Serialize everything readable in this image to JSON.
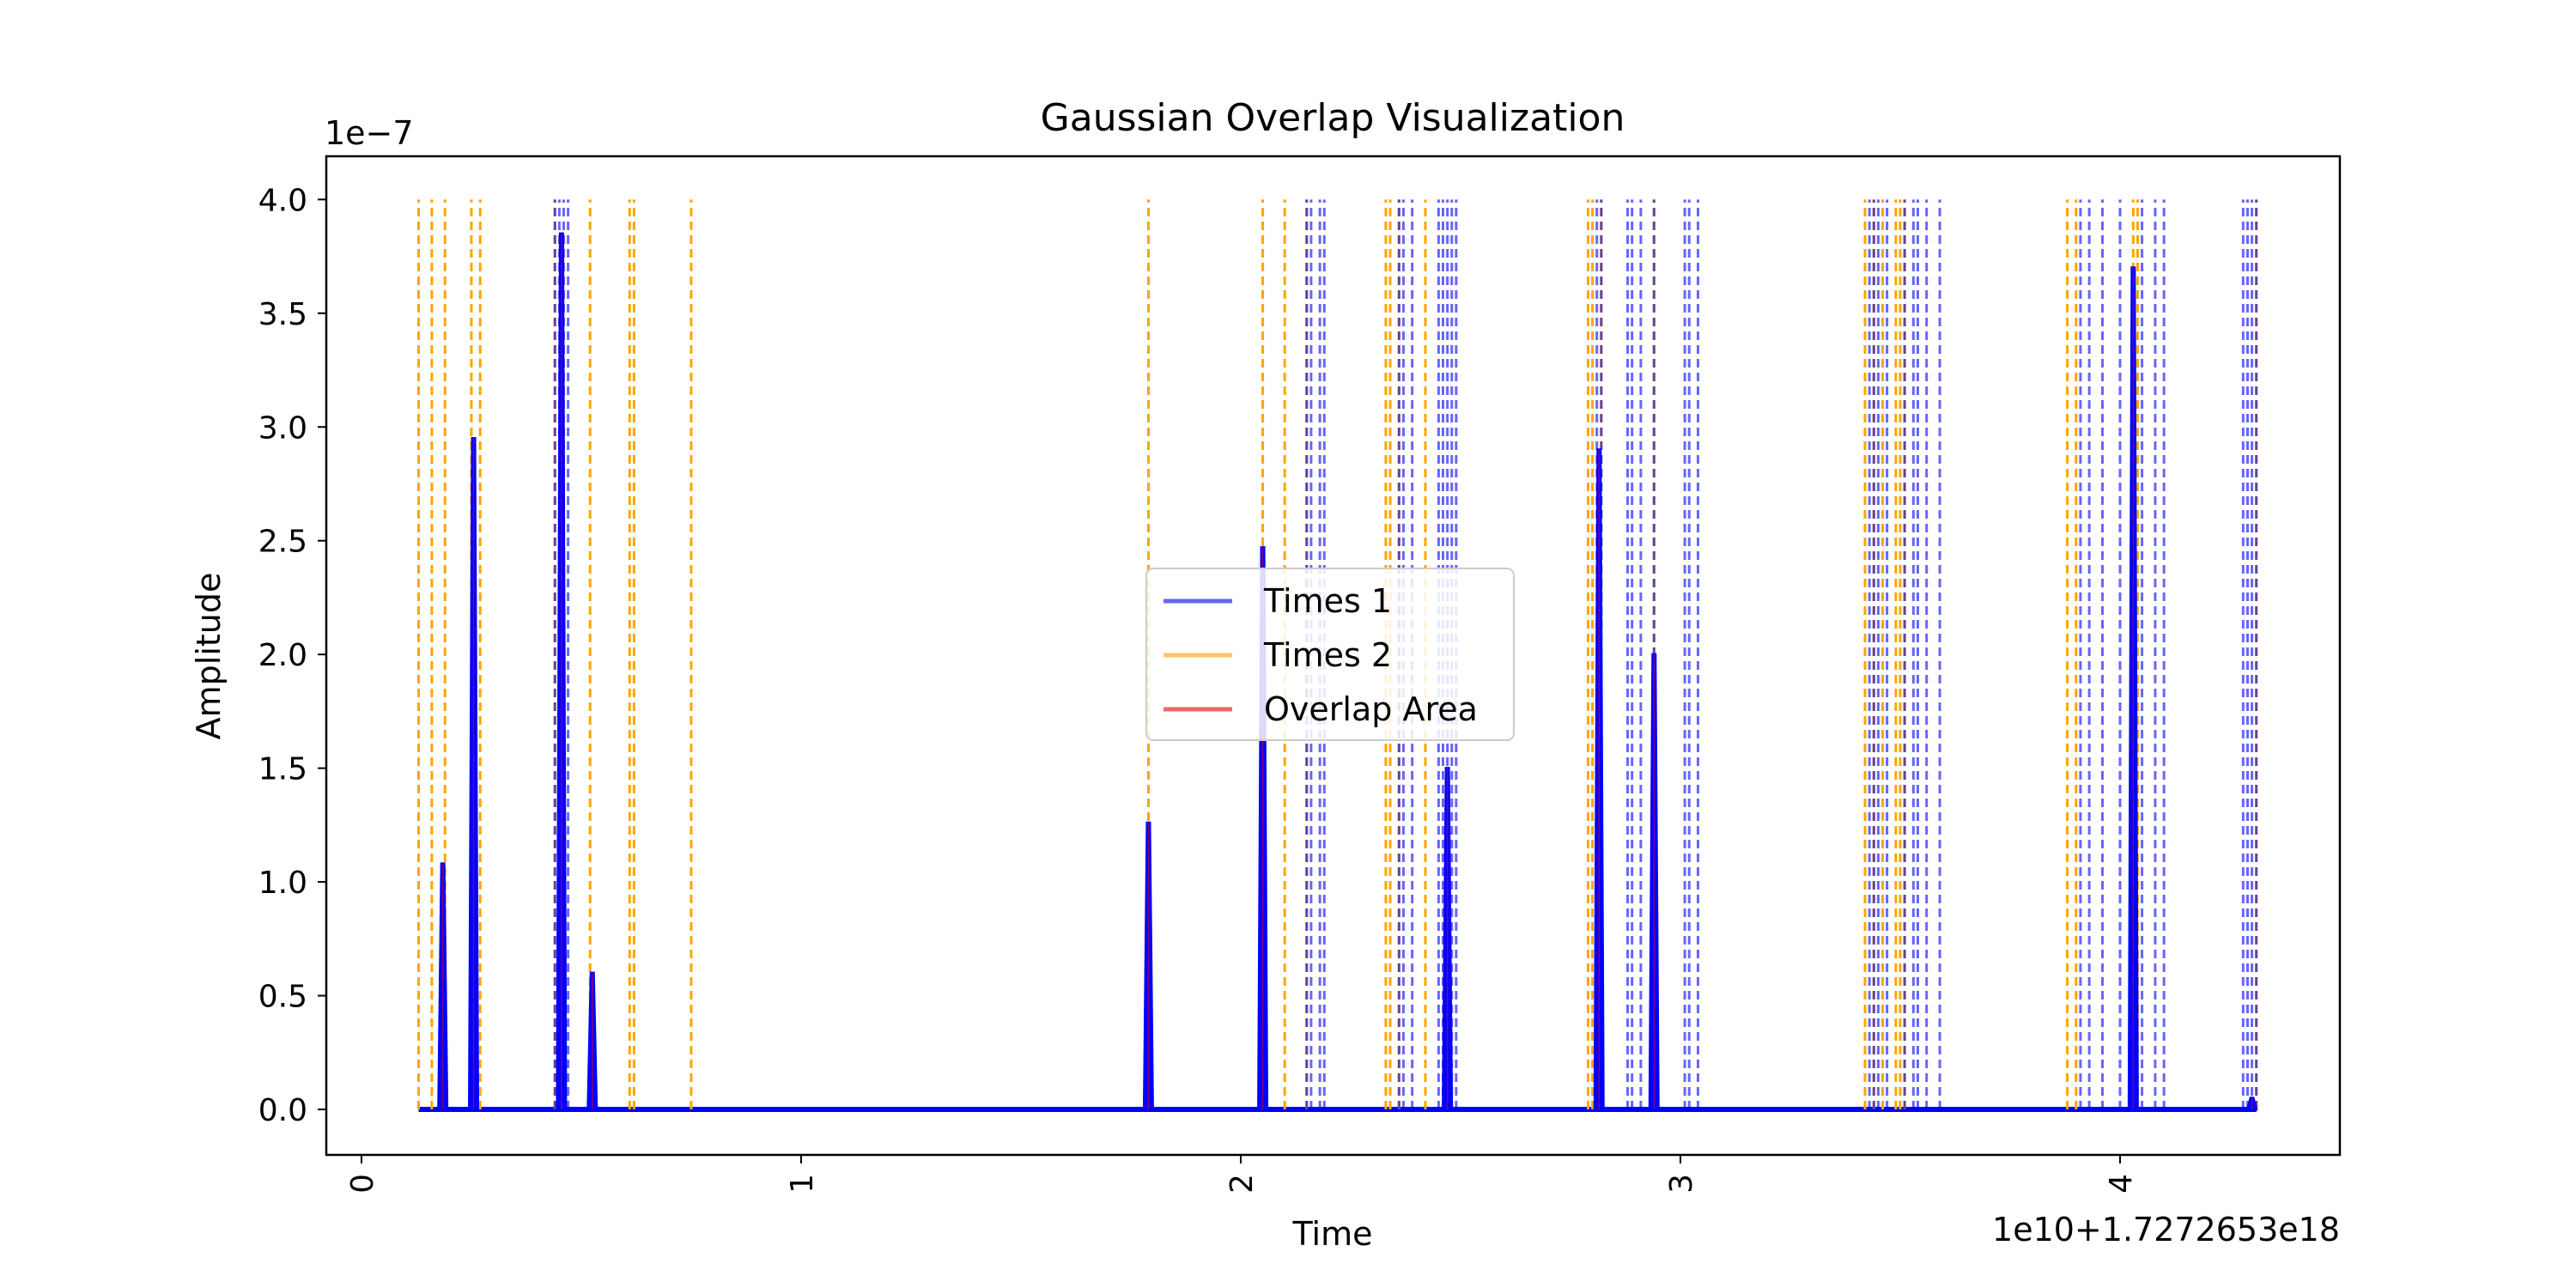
{
  "chart_data": {
    "type": "line",
    "title": "Gaussian Overlap Visualization",
    "xlabel": "Time",
    "ylabel": "Amplitude",
    "x_offset_text": "1e10+1.7272653e18",
    "y_scale_text": "1e−7",
    "xlim": [
      -0.08,
      4.5
    ],
    "ylim": [
      -0.2,
      4.19
    ],
    "x_ticks": [
      {
        "value": 0,
        "label": "0"
      },
      {
        "value": 1,
        "label": "1"
      },
      {
        "value": 2,
        "label": "2"
      },
      {
        "value": 3,
        "label": "3"
      },
      {
        "value": 4,
        "label": "4"
      }
    ],
    "y_ticks": [
      {
        "value": 0.0,
        "label": "0.0"
      },
      {
        "value": 0.5,
        "label": "0.5"
      },
      {
        "value": 1.0,
        "label": "1.0"
      },
      {
        "value": 1.5,
        "label": "1.5"
      },
      {
        "value": 2.0,
        "label": "2.0"
      },
      {
        "value": 2.5,
        "label": "2.5"
      },
      {
        "value": 3.0,
        "label": "3.0"
      },
      {
        "value": 3.5,
        "label": "3.5"
      },
      {
        "value": 4.0,
        "label": "4.0"
      }
    ],
    "legend": {
      "placement": "center",
      "entries": [
        {
          "label": "Times 1",
          "color": "#6666f0"
        },
        {
          "label": "Times 2",
          "color": "#ffc466"
        },
        {
          "label": "Overlap Area",
          "color": "#f06666"
        }
      ]
    },
    "colors": {
      "times1": "#0000ff",
      "times2": "#ffa500",
      "overlap": "#ff0000"
    },
    "x_range": [
      0.13,
      4.31
    ],
    "vline_top": 4.0,
    "times1_vlines": [
      0.44,
      0.45,
      0.46,
      0.47,
      2.15,
      2.16,
      2.18,
      2.19,
      2.36,
      2.37,
      2.39,
      2.45,
      2.46,
      2.47,
      2.48,
      2.49,
      2.81,
      2.82,
      2.88,
      2.89,
      2.91,
      2.94,
      3.01,
      3.02,
      3.04,
      3.43,
      3.44,
      3.45,
      3.47,
      3.51,
      3.53,
      3.54,
      3.56,
      3.59,
      3.91,
      3.93,
      3.96,
      4.0,
      4.05,
      4.08,
      4.1,
      4.28,
      4.29,
      4.3,
      4.31
    ],
    "times2_vlines": [
      0.13,
      0.16,
      0.19,
      0.25,
      0.27,
      0.44,
      0.52,
      0.61,
      0.62,
      0.75,
      1.79,
      2.05,
      2.1,
      2.15,
      2.33,
      2.34,
      2.36,
      2.42,
      2.79,
      2.8,
      2.82,
      2.94,
      3.42,
      3.44,
      3.46,
      3.49,
      3.5,
      3.51,
      3.88,
      3.9,
      4.03,
      4.04,
      4.31
    ],
    "peaks": [
      {
        "x": 0.185,
        "y": 1.08
      },
      {
        "x": 0.255,
        "y": 2.95
      },
      {
        "x": 0.455,
        "y": 3.85
      },
      {
        "x": 0.525,
        "y": 0.6
      },
      {
        "x": 1.79,
        "y": 1.26
      },
      {
        "x": 2.05,
        "y": 2.47
      },
      {
        "x": 2.47,
        "y": 1.5
      },
      {
        "x": 2.815,
        "y": 2.9
      },
      {
        "x": 2.94,
        "y": 2.0
      },
      {
        "x": 4.03,
        "y": 3.7
      },
      {
        "x": 4.3,
        "y": 0.05
      }
    ]
  }
}
